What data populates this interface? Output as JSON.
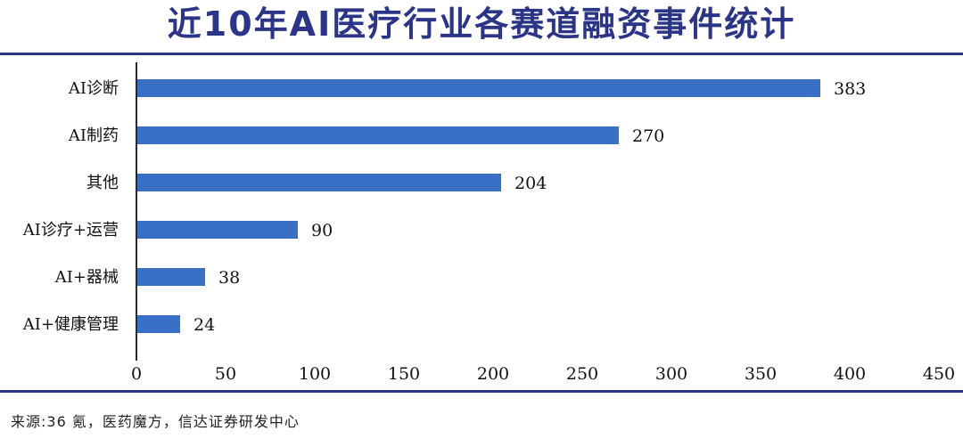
{
  "title": "近10年AI医疗行业各赛道融资事件统计",
  "source": "来源:36 氪，医药魔方，信达证券研发中心",
  "chart_data": {
    "type": "bar",
    "orientation": "horizontal",
    "title": "近10年AI医疗行业各赛道融资事件统计",
    "categories": [
      "AI诊断",
      "AI制药",
      "其他",
      "AI诊疗+运营",
      "AI+器械",
      "AI+健康管理"
    ],
    "values": [
      383,
      270,
      204,
      90,
      38,
      24
    ],
    "xlim": [
      0,
      450
    ],
    "xticks": [
      0,
      50,
      100,
      150,
      200,
      250,
      300,
      350,
      400,
      450
    ],
    "xlabel": "",
    "ylabel": "",
    "grid": false,
    "bar_color": "#3a6fc7",
    "axis_color": "#2b2b2b"
  }
}
